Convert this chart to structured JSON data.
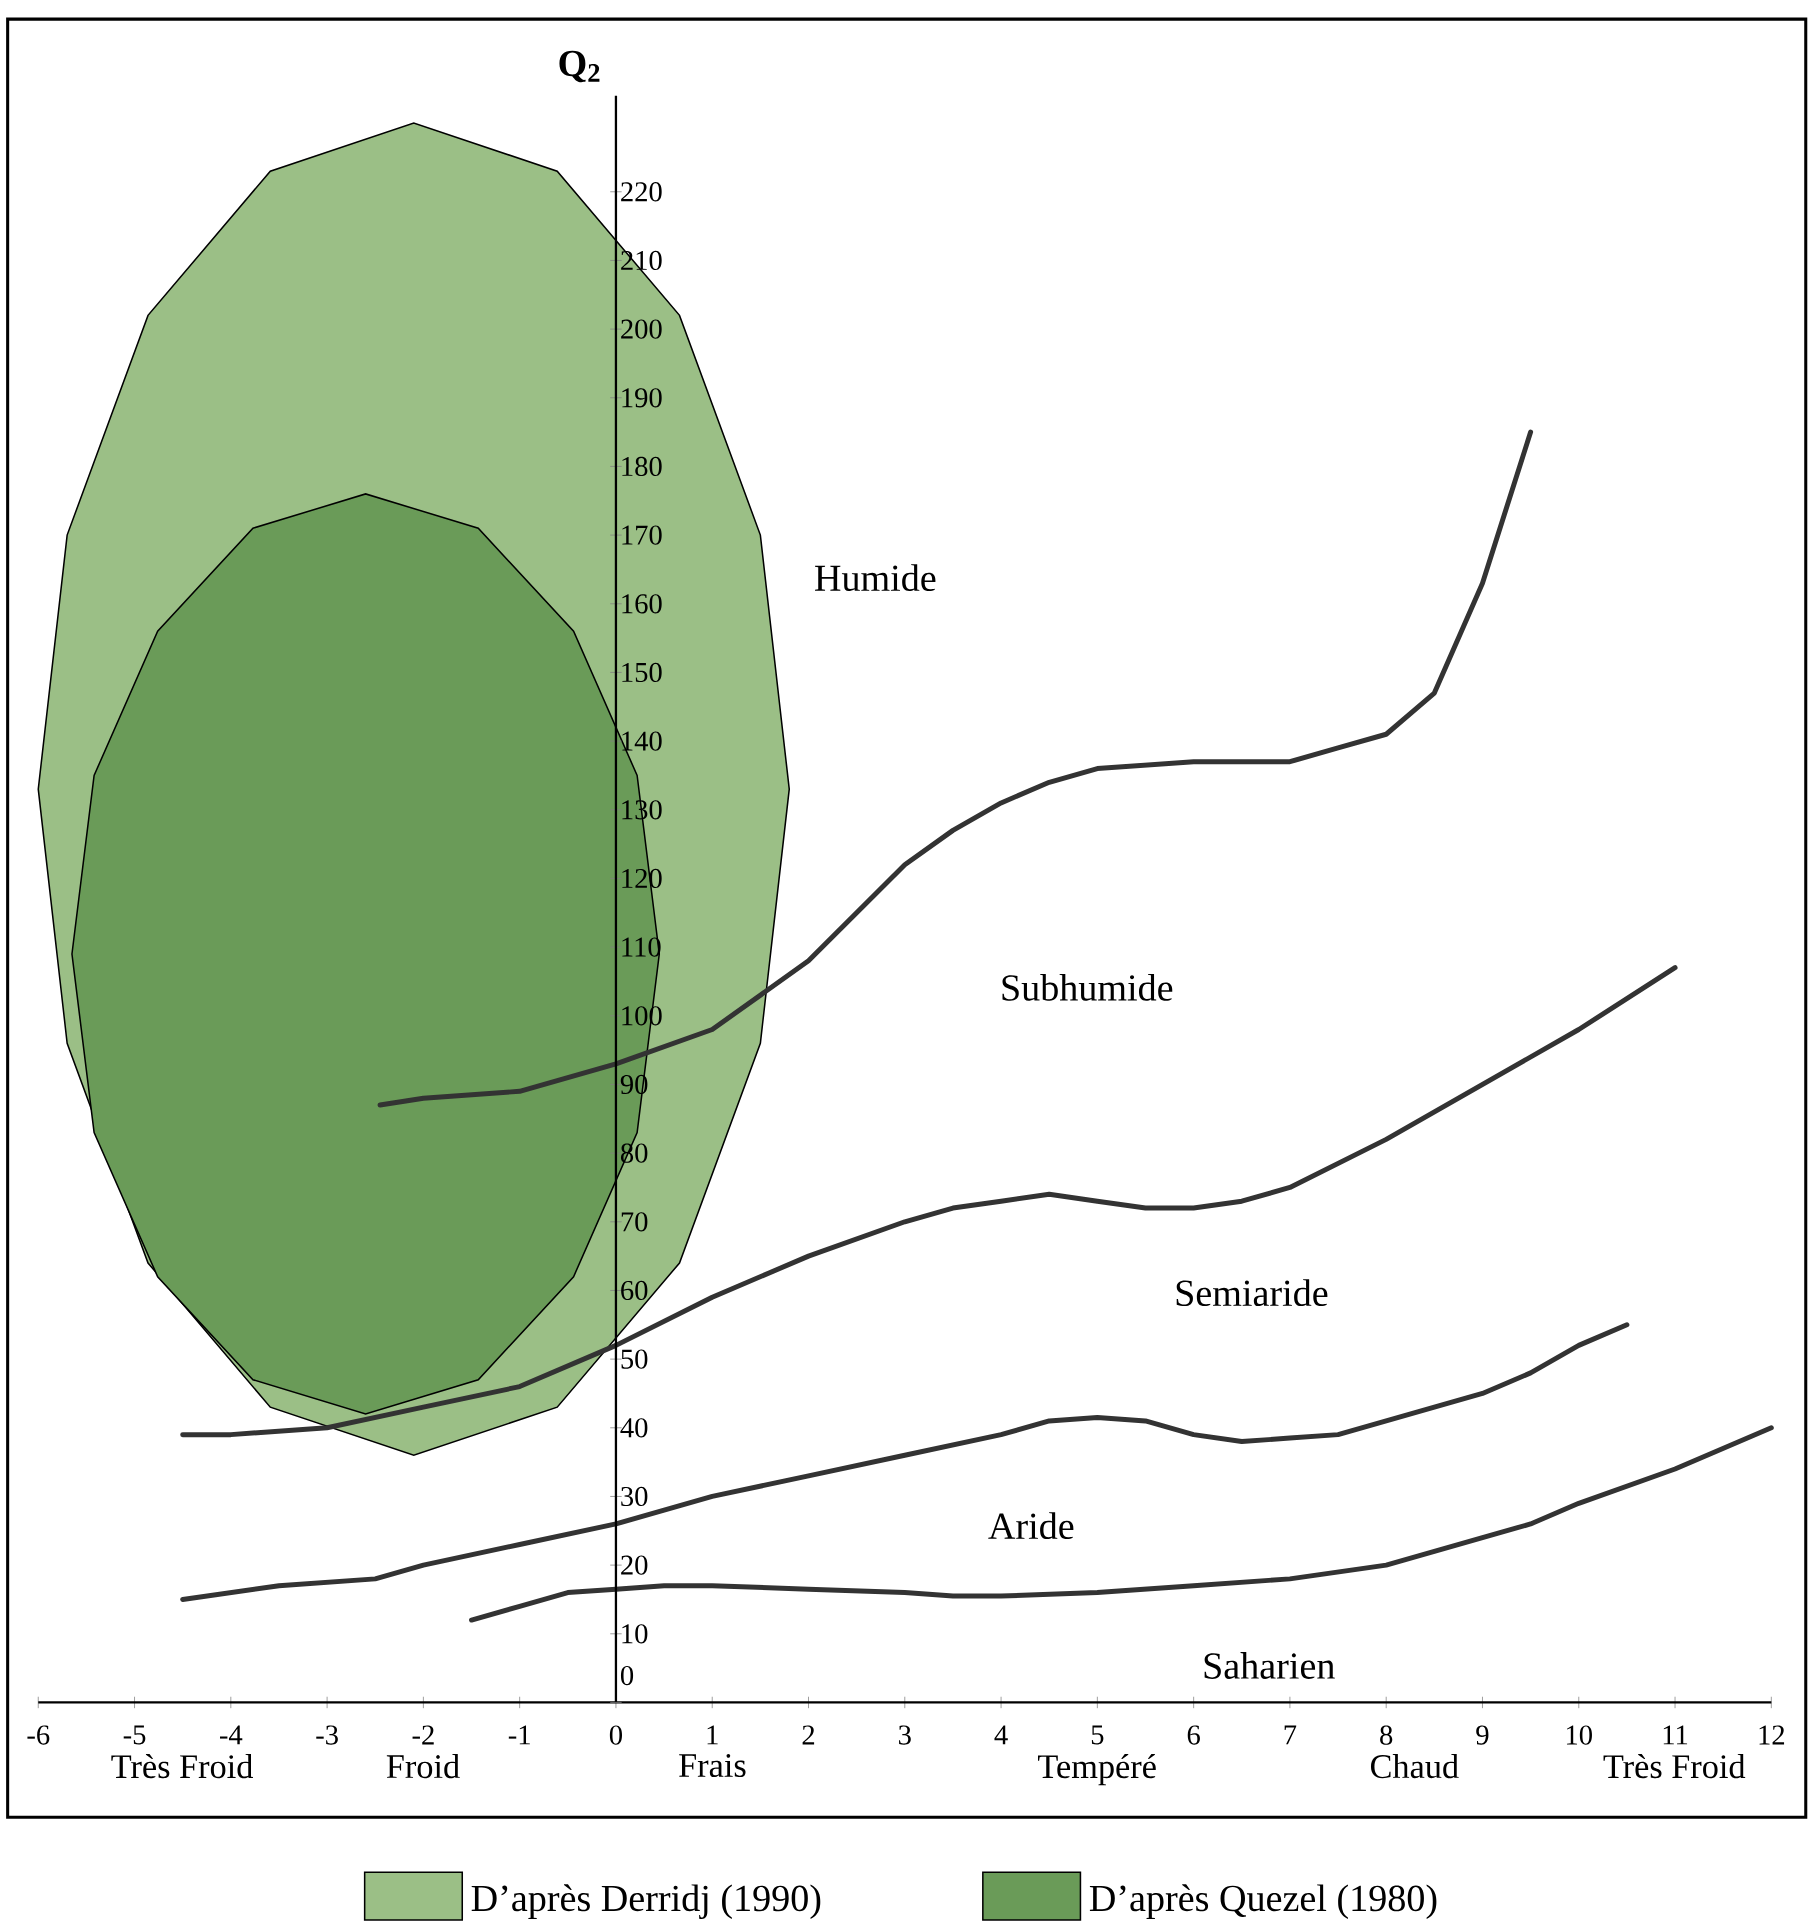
{
  "chart_data": {
    "type": "line",
    "xlim": [
      -6,
      12
    ],
    "ylim": [
      0,
      234
    ],
    "xticks": [
      -6,
      -5,
      -4,
      -3,
      -2,
      -1,
      0,
      1,
      2,
      3,
      4,
      5,
      6,
      7,
      8,
      9,
      10,
      11,
      12
    ],
    "yticks": [
      0,
      10,
      20,
      30,
      40,
      50,
      60,
      70,
      80,
      90,
      100,
      110,
      120,
      130,
      140,
      150,
      160,
      170,
      180,
      190,
      200,
      210,
      220
    ],
    "ylabel": "Q$_{2}$",
    "legend": "bottom",
    "grid": false,
    "series": [
      {
        "name": "D’après Derridj (1990)",
        "type": "area",
        "color": "#9bbf86",
        "x": [
          1.8,
          1.5,
          0.66,
          -0.61,
          -2.1,
          -3.59,
          -4.86,
          -5.7,
          -6.0,
          -5.7,
          -4.86,
          -3.59,
          -2.1,
          -0.61,
          0.66,
          1.5,
          1.8
        ],
        "values": [
          133,
          170,
          202,
          223,
          230,
          223,
          202,
          170,
          133,
          96,
          64,
          43,
          36,
          43,
          64,
          96,
          133
        ]
      },
      {
        "name": "D’après Quezel (1980)",
        "type": "area",
        "color": "#6a9b58",
        "x": [
          0.45,
          0.22,
          -0.44,
          -1.43,
          -2.6,
          -3.77,
          -4.76,
          -5.42,
          -5.65,
          -5.42,
          -4.76,
          -3.77,
          -2.6,
          -1.43,
          -0.44,
          0.22,
          0.45
        ],
        "values": [
          109,
          135,
          156,
          171,
          176,
          171,
          156,
          135,
          109,
          83,
          62,
          47,
          42,
          47,
          62,
          83,
          109
        ]
      },
      {
        "color": "#333333",
        "x": [
          -2.45,
          -2,
          -1,
          0,
          1,
          2,
          3,
          3.5,
          4,
          4.5,
          5,
          6,
          7,
          7.5,
          8,
          8.5,
          9,
          9.5
        ],
        "values": [
          87,
          88,
          89,
          93,
          98,
          108,
          122,
          127,
          131,
          134,
          136,
          137,
          137,
          139,
          141,
          147,
          163,
          185
        ]
      },
      {
        "color": "#333333",
        "x": [
          -4.5,
          -4,
          -3,
          -2,
          -1,
          0,
          1,
          2,
          3,
          3.5,
          4,
          4.5,
          5,
          5.5,
          6,
          6.5,
          7,
          8,
          9,
          10,
          11
        ],
        "values": [
          39,
          39,
          40,
          43,
          46,
          52,
          59,
          65,
          70,
          72,
          73,
          74,
          73,
          72,
          72,
          73,
          75,
          82,
          90,
          98,
          107
        ]
      },
      {
        "color": "#333333",
        "x": [
          -4.5,
          -3.5,
          -2.5,
          -2,
          -1,
          0,
          0.5,
          1,
          2,
          3,
          4,
          4.5,
          5,
          5.5,
          6,
          6.5,
          7,
          7.5,
          8.5,
          9,
          9.5,
          10,
          10.5
        ],
        "values": [
          15,
          17,
          18,
          20,
          23,
          26,
          28,
          30,
          33,
          36,
          39,
          41,
          41.5,
          41,
          39,
          38,
          38.5,
          39,
          43,
          45,
          48,
          52,
          55
        ]
      },
      {
        "color": "#333333",
        "x": [
          -1.5,
          -1,
          -0.5,
          0,
          0.5,
          1,
          2,
          3,
          3.5,
          4,
          5,
          6,
          7,
          8,
          8.5,
          9,
          9.5,
          10,
          11,
          12
        ],
        "values": [
          12,
          14,
          16,
          16.5,
          17,
          17,
          16.5,
          16,
          15.5,
          15.5,
          16,
          17,
          18,
          20,
          22,
          24,
          26,
          29,
          34,
          40
        ]
      }
    ],
    "annotations": [
      "Humide",
      "Subhumide",
      "Semiaride",
      "Aride",
      "Saharien",
      "Très Froid",
      "Froid",
      "Frais",
      "Tempéré",
      "Chaud",
      "Très Froid"
    ]
  }
}
